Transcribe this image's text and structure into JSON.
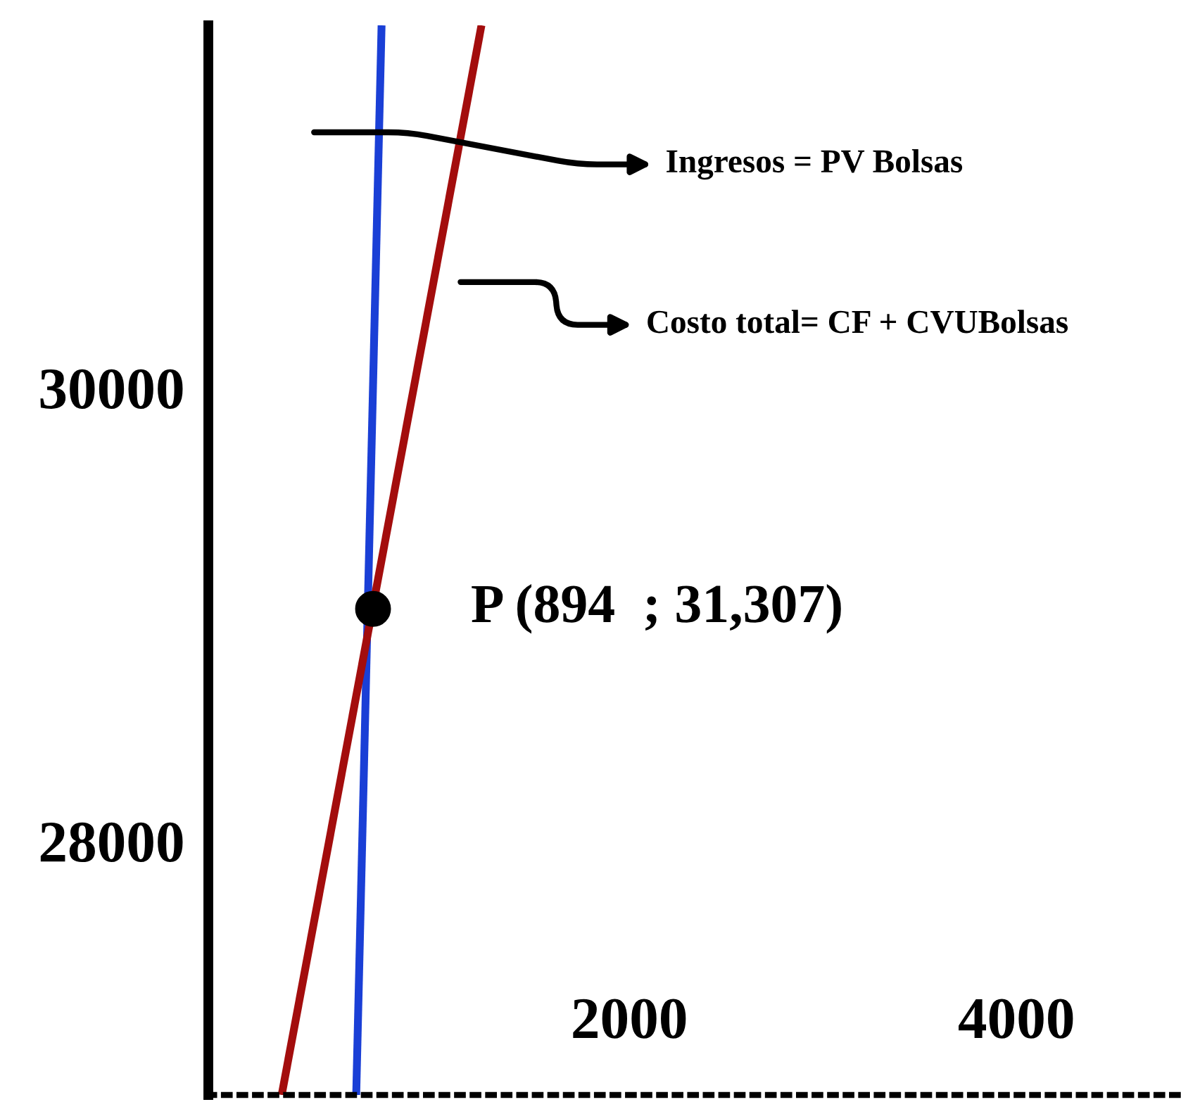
{
  "chart_data": {
    "type": "line",
    "xlim": [
      -175,
      4850
    ],
    "ylim": [
      26880,
      31600
    ],
    "xticks": [
      2000,
      4000
    ],
    "yticks": [
      28000,
      30000
    ],
    "grid": false,
    "legend": false,
    "marker": "none",
    "line_style": "solid",
    "series": [
      {
        "name": "Ingresos = PV Bolsas",
        "color": "#1a3fd6",
        "x": [
          589,
          720
        ],
        "values": [
          26880,
          31600
        ]
      },
      {
        "name": "Costo total= CF + CVUBolsas",
        "color": "#a30d0d",
        "x": [
          204,
          1236
        ],
        "values": [
          26880,
          31600
        ]
      },
      {
        "type": "scatter",
        "color": "#000000",
        "marker": "circle",
        "x": [
          676
        ],
        "values": [
          29025
        ]
      }
    ],
    "annotations": [
      {
        "text": "P (894  ; 31,307)",
        "x": 676,
        "y": 29025
      }
    ]
  }
}
